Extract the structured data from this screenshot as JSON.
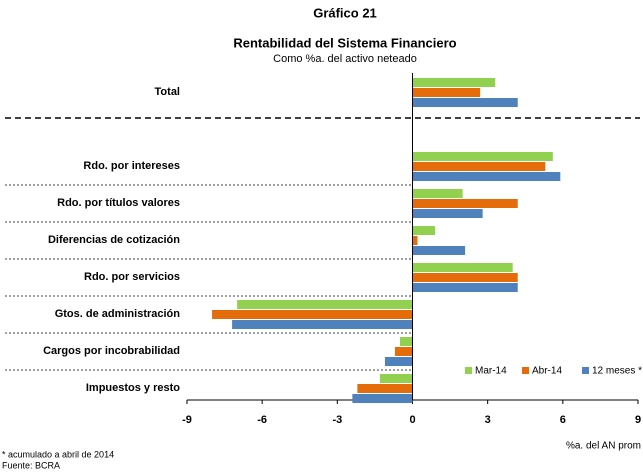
{
  "chart_data": {
    "type": "bar",
    "orientation": "horizontal",
    "title": "Gráfico 21",
    "subtitle": "Rentabilidad del Sistema Financiero",
    "subtitle2": "Como %a. del activo neteado",
    "x_label": "%a. del AN prom",
    "footnotes": [
      "* acumulado a abril de 2014",
      "Fuente: BCRA"
    ],
    "categories": [
      "Total",
      "Rdo. por intereses",
      "Rdo. por títulos valores",
      "Diferencias de cotización",
      "Rdo. por servicios",
      "Gtos. de administración",
      "Cargos por incobrabilidad",
      "Impuestos y resto"
    ],
    "series": [
      {
        "name": "Mar-14",
        "color": "#92d050",
        "values": [
          3.3,
          5.6,
          2.0,
          0.9,
          4.0,
          -7.0,
          -0.5,
          -1.3
        ]
      },
      {
        "name": "Abr-14",
        "color": "#e46c0a",
        "values": [
          2.7,
          5.3,
          4.2,
          0.2,
          4.2,
          -8.0,
          -0.7,
          -2.2
        ]
      },
      {
        "name": "12 meses *",
        "color": "#4f81bd",
        "values": [
          4.2,
          5.9,
          2.8,
          2.1,
          4.2,
          -7.2,
          -1.1,
          -2.4
        ]
      }
    ],
    "xlim": [
      -9,
      9
    ],
    "xticks": [
      -9,
      -6,
      -3,
      0,
      3,
      6,
      9
    ]
  }
}
